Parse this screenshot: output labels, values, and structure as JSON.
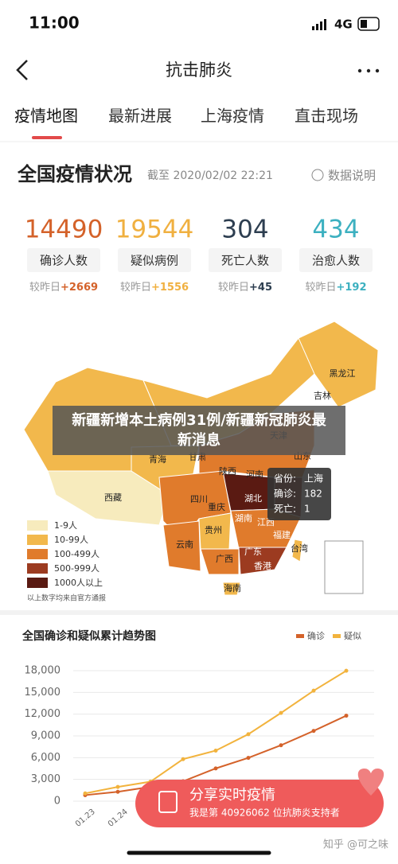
{
  "status_bar": {
    "time": "11:00",
    "network": "4G"
  },
  "header": {
    "title": "抗击肺炎"
  },
  "tabs": [
    "疫情地图",
    "最新进展",
    "上海疫情",
    "直击现场"
  ],
  "overview": {
    "title": "全国疫情状况",
    "timestamp": "截至 2020/02/02 22:21",
    "help": "数据说明",
    "stats": [
      {
        "value": 14490,
        "label": "确诊人数",
        "delta_prefix": "较昨日",
        "delta": "+2669",
        "color": "#d4622a"
      },
      {
        "value": 19544,
        "label": "疑似病例",
        "delta_prefix": "较昨日",
        "delta": "+1556",
        "color": "#f0b040"
      },
      {
        "value": 304,
        "label": "死亡人数",
        "delta_prefix": "较昨日",
        "delta": "+45",
        "color": "#2d3e50"
      },
      {
        "value": 434,
        "label": "治愈人数",
        "delta_prefix": "较昨日",
        "delta": "+192",
        "color": "#3cb0c0"
      }
    ]
  },
  "map": {
    "provinces": [
      "黑龙江",
      "吉林",
      "天津",
      "山东",
      "青海",
      "甘肃",
      "西藏",
      "陕西",
      "河南",
      "湖北",
      "四川",
      "重庆",
      "湖南",
      "江西",
      "福建",
      "贵州",
      "云南",
      "广西",
      "广东",
      "香港",
      "台湾",
      "海南"
    ],
    "legend": [
      {
        "label": "1-9人",
        "color": "#f7ebbd"
      },
      {
        "label": "10-99人",
        "color": "#f2b84c"
      },
      {
        "label": "100-499人",
        "color": "#e07b2c"
      },
      {
        "label": "500-999人",
        "color": "#9c3b20"
      },
      {
        "label": "1000人以上",
        "color": "#5a1a12"
      }
    ],
    "legend_note": "以上数字均来自官方通报",
    "tooltip": [
      {
        "label": "省份:",
        "value": "上海"
      },
      {
        "label": "确诊:",
        "value": 182
      },
      {
        "label": "死亡:",
        "value": 1
      }
    ]
  },
  "banner": "新疆新增本土病例31例/新疆新冠肺炎最新消息",
  "trend_chart": {
    "type": "line",
    "title": "全国确诊和疑似累计趋势图",
    "categories": [
      "01.23",
      "01.24",
      null,
      null,
      null,
      null,
      null,
      null,
      null
    ],
    "series": [
      {
        "name": "确诊",
        "color": "#d4622a",
        "values": [
          830,
          1287,
          1975,
          2744,
          4515,
          5974,
          7711,
          9692,
          11791
        ]
      },
      {
        "name": "疑似",
        "color": "#f2b33d",
        "values": [
          1072,
          1965,
          2684,
          5794,
          6973,
          9239,
          12167,
          15238,
          17988
        ]
      }
    ],
    "ylim": [
      0,
      18000
    ],
    "yticks": [
      0,
      {
        "value": 3000,
        "label": "3,000"
      },
      {
        "value": 6000,
        "label": "6,000"
      },
      {
        "value": 9000,
        "label": "9,000"
      },
      {
        "value": 12000,
        "label": "12,000"
      },
      {
        "value": 15000,
        "label": "15,000"
      },
      {
        "value": 18000,
        "label": "18,000"
      }
    ],
    "grid": true
  },
  "share": {
    "title": "分享实时疫情",
    "subtitle": "我是第 40926062 位抗肺炎支持者"
  },
  "watermark": "知乎 @可之味"
}
